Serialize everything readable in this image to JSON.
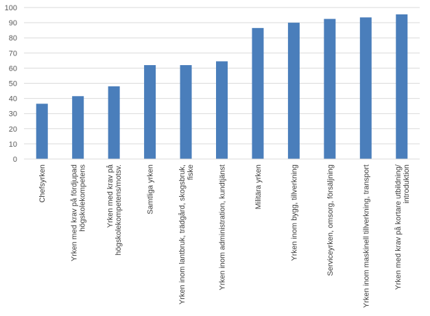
{
  "chart_data": {
    "type": "bar",
    "title": "",
    "xlabel": "",
    "ylabel": "",
    "ylim": [
      0,
      100
    ],
    "yticks": [
      0,
      10,
      20,
      30,
      40,
      50,
      60,
      70,
      80,
      90,
      100
    ],
    "grid": true,
    "legend": "none",
    "bar_color": "#4a7ebb",
    "categories": [
      [
        "Chefsyrken"
      ],
      [
        "Yrken med krav på fördjupad",
        "högskolekompetens"
      ],
      [
        "Yrken med krav på",
        "högskolekompetens/motsv."
      ],
      [
        "Samtliga yrken"
      ],
      [
        "Yrken inom lantbruk, trädgård, skogsbruk,",
        "fiske"
      ],
      [
        "Yrken inom administration, kundtjänst"
      ],
      [
        "Militära yrken"
      ],
      [
        "Yrken inom bygg, tillverkning"
      ],
      [
        "Serviceyrken, omsorg, försäljning"
      ],
      [
        "Yrken inom maskinell tillverkning, transport"
      ],
      [
        "Yrken med krav på kortare utbildning/",
        "introduktion"
      ]
    ],
    "values": [
      36.5,
      41.5,
      48,
      62,
      62,
      64.5,
      86.5,
      90,
      92.5,
      93.5,
      95.5
    ]
  }
}
